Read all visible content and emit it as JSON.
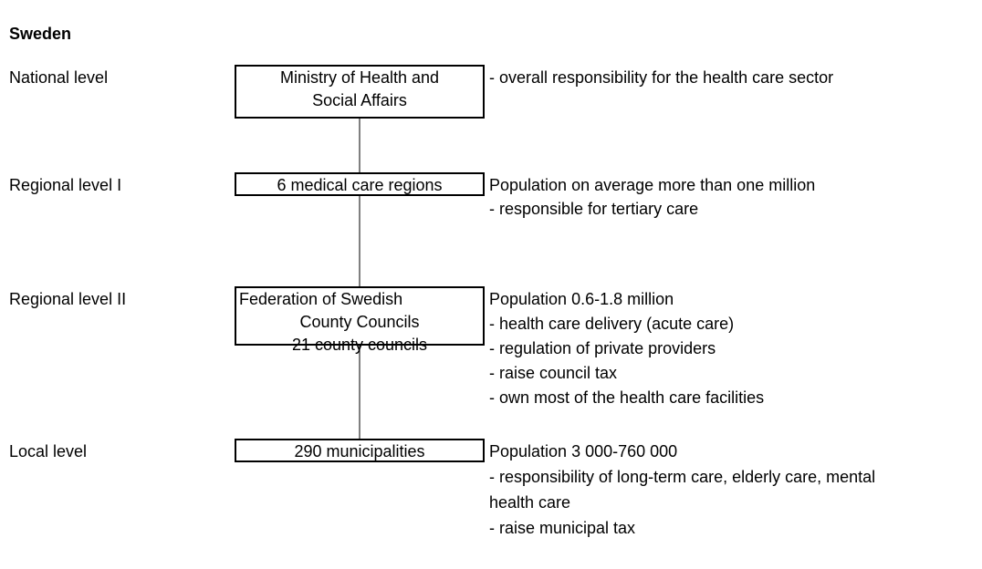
{
  "header": {
    "title": "Sweden"
  },
  "levels": [
    {
      "label": "National level",
      "box": [
        "Ministry of Health and",
        "Social Affairs"
      ],
      "description": [
        "- overall responsibility for the health care sector"
      ]
    },
    {
      "label": "Regional level I",
      "box": [
        "6 medical care regions"
      ],
      "description": [
        "Population on average more than one million",
        "- responsible for tertiary care"
      ]
    },
    {
      "label": "Regional level II",
      "box": [
        "Federation of Swedish",
        "County Councils",
        "21 county councils"
      ],
      "description": [
        "Population 0.6-1.8 million",
        "- health care delivery (acute care)",
        "- regulation of private providers",
        "- raise council tax",
        "- own most of the health care facilities"
      ]
    },
    {
      "label": "Local level",
      "box": [
        "290 municipalities"
      ],
      "description": [
        "Population 3 000-760 000",
        "- responsibility of long-term care, elderly care, mental",
        "health care",
        "- raise municipal tax"
      ]
    }
  ]
}
